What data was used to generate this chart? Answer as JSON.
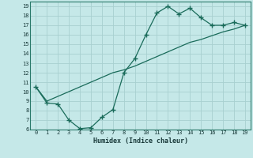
{
  "title": "",
  "xlabel": "Humidex (Indice chaleur)",
  "background_color": "#c5e8e8",
  "grid_color": "#a8d0d0",
  "line_color": "#1a6b5a",
  "xlim": [
    -0.5,
    19.5
  ],
  "ylim": [
    6,
    19.5
  ],
  "xticks": [
    0,
    1,
    2,
    3,
    4,
    5,
    6,
    7,
    8,
    9,
    10,
    11,
    12,
    13,
    14,
    15,
    16,
    17,
    18,
    19
  ],
  "yticks": [
    6,
    7,
    8,
    9,
    10,
    11,
    12,
    13,
    14,
    15,
    16,
    17,
    18,
    19
  ],
  "line1_x": [
    0,
    1,
    2,
    3,
    4,
    5,
    6,
    7,
    8,
    9,
    10,
    11,
    12,
    13,
    14,
    15,
    16,
    17,
    18,
    19
  ],
  "line1_y": [
    10.5,
    8.8,
    8.7,
    7.0,
    6.1,
    6.2,
    7.3,
    8.1,
    12.0,
    13.5,
    16.0,
    18.3,
    19.0,
    18.2,
    18.8,
    17.8,
    17.0,
    17.0,
    17.3,
    17.0
  ],
  "line2_x": [
    0,
    1,
    2,
    3,
    4,
    5,
    6,
    7,
    8,
    9,
    10,
    11,
    12,
    13,
    14,
    15,
    16,
    17,
    18,
    19
  ],
  "line2_y": [
    10.5,
    9.0,
    9.5,
    10.0,
    10.5,
    11.0,
    11.5,
    12.0,
    12.3,
    12.7,
    13.2,
    13.7,
    14.2,
    14.7,
    15.2,
    15.5,
    15.9,
    16.3,
    16.6,
    17.0
  ],
  "marker": "+",
  "markersize": 4.0,
  "linewidth": 0.9,
  "tick_fontsize": 5.0,
  "xlabel_fontsize": 6.0
}
